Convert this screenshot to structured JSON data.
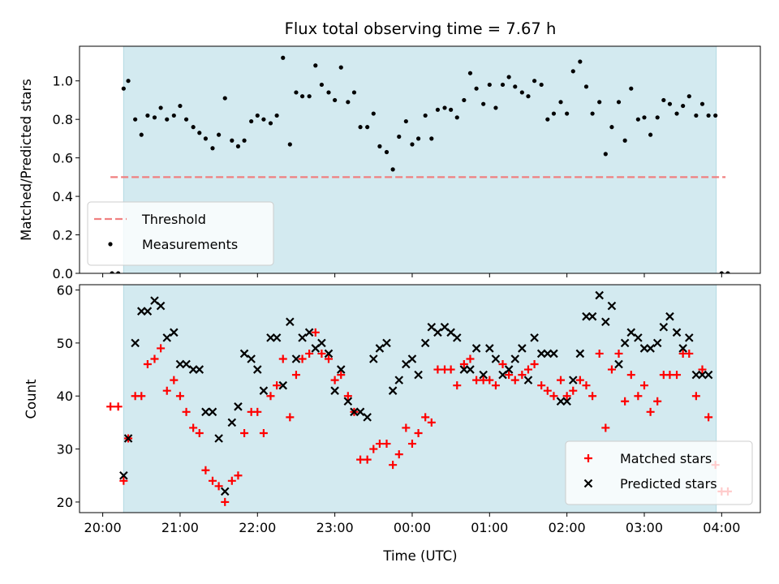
{
  "figure": {
    "title": "Flux total observing time = 7.67 h",
    "xlabel": "Time (UTC)",
    "x_ticks": [
      "20:00",
      "21:00",
      "22:00",
      "23:00",
      "00:00",
      "01:00",
      "02:00",
      "03:00",
      "04:00"
    ],
    "x_range_hours": [
      19.7,
      28.5
    ],
    "observing_window_hours": [
      20.27,
      27.93
    ],
    "colors": {
      "window": "#d3eaf0",
      "threshold": "#f08080",
      "measurement": "#000000",
      "matched": "#ff0000",
      "predicted": "#000000"
    }
  },
  "chart_data": [
    {
      "type": "scatter",
      "ylabel": "Matched/Predicted stars",
      "ylim": [
        0,
        1.18
      ],
      "y_ticks": [
        "0.0",
        "0.2",
        "0.4",
        "0.6",
        "0.8",
        "1.0"
      ],
      "threshold": {
        "value": 0.5,
        "x_range_hours": [
          20.1,
          28.05
        ]
      },
      "legend": {
        "placement": "lower-left",
        "entries": [
          "Threshold",
          "Measurements"
        ]
      },
      "series": [
        {
          "name": "Measurements",
          "x_hours": [
            20.12,
            20.2,
            20.27,
            20.33,
            20.42,
            20.5,
            20.58,
            20.67,
            20.75,
            20.83,
            20.92,
            21.0,
            21.08,
            21.17,
            21.25,
            21.33,
            21.42,
            21.5,
            21.58,
            21.67,
            21.75,
            21.83,
            21.92,
            22.0,
            22.08,
            22.17,
            22.25,
            22.33,
            22.42,
            22.5,
            22.58,
            22.67,
            22.75,
            22.83,
            22.92,
            23.0,
            23.08,
            23.17,
            23.25,
            23.33,
            23.42,
            23.5,
            23.58,
            23.67,
            23.75,
            23.83,
            23.92,
            24.0,
            24.08,
            24.17,
            24.25,
            24.33,
            24.42,
            24.5,
            24.58,
            24.67,
            24.75,
            24.83,
            24.92,
            25.0,
            25.08,
            25.17,
            25.25,
            25.33,
            25.42,
            25.5,
            25.58,
            25.67,
            25.75,
            25.83,
            25.92,
            26.0,
            26.08,
            26.17,
            26.25,
            26.33,
            26.42,
            26.5,
            26.58,
            26.67,
            26.75,
            26.83,
            26.92,
            27.0,
            27.08,
            27.17,
            27.25,
            27.33,
            27.42,
            27.5,
            27.58,
            27.67,
            27.75,
            27.83,
            27.92,
            28.0,
            28.08
          ],
          "y": [
            0.0,
            0.0,
            0.96,
            1.0,
            0.8,
            0.72,
            0.82,
            0.81,
            0.86,
            0.8,
            0.82,
            0.87,
            0.8,
            0.76,
            0.73,
            0.7,
            0.65,
            0.72,
            0.91,
            0.69,
            0.66,
            0.69,
            0.79,
            0.82,
            0.8,
            0.78,
            0.82,
            1.12,
            0.67,
            0.94,
            0.92,
            0.92,
            1.08,
            0.98,
            0.94,
            0.9,
            1.07,
            0.89,
            0.94,
            0.76,
            0.76,
            0.83,
            0.66,
            0.63,
            0.54,
            0.71,
            0.79,
            0.67,
            0.7,
            0.82,
            0.7,
            0.85,
            0.86,
            0.85,
            0.81,
            0.9,
            1.04,
            0.96,
            0.88,
            0.98,
            0.86,
            0.98,
            1.02,
            0.97,
            0.94,
            0.92,
            1.0,
            0.98,
            0.8,
            0.83,
            0.89,
            0.83,
            1.05,
            1.1,
            0.97,
            0.83,
            0.89,
            0.62,
            0.76,
            0.89,
            0.69,
            0.96,
            0.8,
            0.81,
            0.72,
            0.81,
            0.9,
            0.88,
            0.83,
            0.87,
            0.92,
            0.82,
            0.88,
            0.82,
            0.82,
            0.0,
            0.0
          ]
        }
      ]
    },
    {
      "type": "scatter",
      "ylabel": "Count",
      "ylim": [
        18,
        61
      ],
      "y_ticks": [
        "20",
        "30",
        "40",
        "50",
        "60"
      ],
      "legend": {
        "placement": "lower-right",
        "entries": [
          "Matched stars",
          "Predicted stars"
        ]
      },
      "series": [
        {
          "name": "Matched stars",
          "marker": "plus",
          "x_hours": [
            20.1,
            20.2,
            20.27,
            20.33,
            20.42,
            20.5,
            20.58,
            20.67,
            20.75,
            20.83,
            20.92,
            21.0,
            21.08,
            21.17,
            21.25,
            21.33,
            21.42,
            21.5,
            21.58,
            21.67,
            21.75,
            21.83,
            21.92,
            22.0,
            22.08,
            22.17,
            22.25,
            22.33,
            22.42,
            22.5,
            22.58,
            22.67,
            22.75,
            22.83,
            22.92,
            23.0,
            23.08,
            23.17,
            23.25,
            23.33,
            23.42,
            23.5,
            23.58,
            23.67,
            23.75,
            23.83,
            23.92,
            24.0,
            24.08,
            24.17,
            24.25,
            24.33,
            24.42,
            24.5,
            24.58,
            24.67,
            24.75,
            24.83,
            24.92,
            25.0,
            25.08,
            25.17,
            25.25,
            25.33,
            25.42,
            25.5,
            25.58,
            25.67,
            25.75,
            25.83,
            25.92,
            26.0,
            26.08,
            26.17,
            26.25,
            26.33,
            26.42,
            26.5,
            26.58,
            26.67,
            26.75,
            26.83,
            26.92,
            27.0,
            27.08,
            27.17,
            27.25,
            27.33,
            27.42,
            27.5,
            27.58,
            27.67,
            27.75,
            27.83,
            27.92,
            28.0,
            28.08
          ],
          "y": [
            38,
            38,
            24,
            32,
            40,
            40,
            46,
            47,
            49,
            41,
            43,
            40,
            37,
            34,
            33,
            26,
            24,
            23,
            20,
            24,
            25,
            33,
            37,
            37,
            33,
            40,
            42,
            47,
            36,
            44,
            47,
            48,
            52,
            48,
            47,
            43,
            44,
            40,
            37,
            28,
            28,
            30,
            31,
            31,
            27,
            29,
            34,
            31,
            33,
            36,
            35,
            45,
            45,
            45,
            42,
            46,
            47,
            43,
            43,
            43,
            42,
            46,
            44,
            43,
            44,
            45,
            46,
            42,
            41,
            40,
            43,
            40,
            41,
            43,
            42,
            40,
            48,
            34,
            45,
            48,
            39,
            44,
            40,
            42,
            37,
            39,
            44,
            44,
            44,
            48,
            48,
            40,
            45,
            36,
            27,
            22,
            22
          ]
        },
        {
          "name": "Predicted stars",
          "marker": "x",
          "x_hours": [
            20.27,
            20.33,
            20.42,
            20.5,
            20.58,
            20.67,
            20.75,
            20.83,
            20.92,
            21.0,
            21.08,
            21.17,
            21.25,
            21.33,
            21.42,
            21.5,
            21.58,
            21.67,
            21.75,
            21.83,
            21.92,
            22.0,
            22.08,
            22.17,
            22.25,
            22.33,
            22.42,
            22.5,
            22.58,
            22.67,
            22.75,
            22.83,
            22.92,
            23.0,
            23.08,
            23.17,
            23.25,
            23.33,
            23.42,
            23.5,
            23.58,
            23.67,
            23.75,
            23.83,
            23.92,
            24.0,
            24.08,
            24.17,
            24.25,
            24.33,
            24.42,
            24.5,
            24.58,
            24.67,
            24.75,
            24.83,
            24.92,
            25.0,
            25.08,
            25.17,
            25.25,
            25.33,
            25.42,
            25.5,
            25.58,
            25.67,
            25.75,
            25.83,
            25.92,
            26.0,
            26.08,
            26.17,
            26.25,
            26.33,
            26.42,
            26.5,
            26.58,
            26.67,
            26.75,
            26.83,
            26.92,
            27.0,
            27.08,
            27.17,
            27.25,
            27.33,
            27.42,
            27.5,
            27.58,
            27.67,
            27.75,
            27.83
          ],
          "y": [
            25,
            32,
            50,
            56,
            56,
            58,
            57,
            51,
            52,
            46,
            46,
            45,
            45,
            37,
            37,
            32,
            22,
            35,
            38,
            48,
            47,
            45,
            41,
            51,
            51,
            42,
            54,
            47,
            51,
            52,
            49,
            50,
            48,
            41,
            45,
            39,
            37,
            37,
            36,
            47,
            49,
            50,
            41,
            43,
            46,
            47,
            44,
            50,
            53,
            52,
            53,
            52,
            51,
            45,
            45,
            49,
            44,
            49,
            47,
            44,
            45,
            47,
            49,
            43,
            51,
            48,
            48,
            48,
            39,
            39,
            43,
            48,
            55,
            55,
            59,
            54,
            57,
            46,
            50,
            52,
            51,
            49,
            49,
            50,
            53,
            55,
            52,
            49,
            51,
            44,
            44,
            44
          ]
        }
      ]
    }
  ]
}
